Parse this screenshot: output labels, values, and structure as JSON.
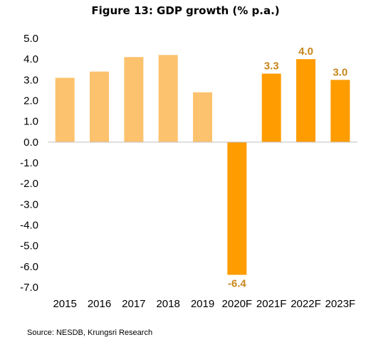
{
  "chart_data": {
    "type": "bar",
    "title": "Figure 13: GDP growth (% p.a.)",
    "categories": [
      "2015",
      "2016",
      "2017",
      "2018",
      "2019",
      "2020F",
      "2021F",
      "2022F",
      "2023F"
    ],
    "values": [
      3.1,
      3.4,
      4.1,
      4.2,
      2.4,
      -6.4,
      3.3,
      4.0,
      3.0
    ],
    "forecast": [
      false,
      false,
      false,
      false,
      false,
      true,
      true,
      true,
      true
    ],
    "data_labels": [
      "",
      "",
      "",
      "",
      "",
      "-6.4",
      "3.3",
      "4.0",
      "3.0"
    ],
    "ylim": [
      -7.0,
      5.0
    ],
    "yticks": [
      "5.0",
      "4.0",
      "3.0",
      "2.0",
      "1.0",
      "0.0",
      "-1.0",
      "-2.0",
      "-3.0",
      "-4.0",
      "-5.0",
      "-6.0",
      "-7.0"
    ],
    "xlabel": "",
    "ylabel": "",
    "grid": false,
    "colors": {
      "actual": "#fdc26d",
      "forecast": "#ff9c00",
      "label": "#c7861b",
      "axis": "#bfbfbf"
    }
  },
  "source": "Source: NESDB, Krungsri Research"
}
